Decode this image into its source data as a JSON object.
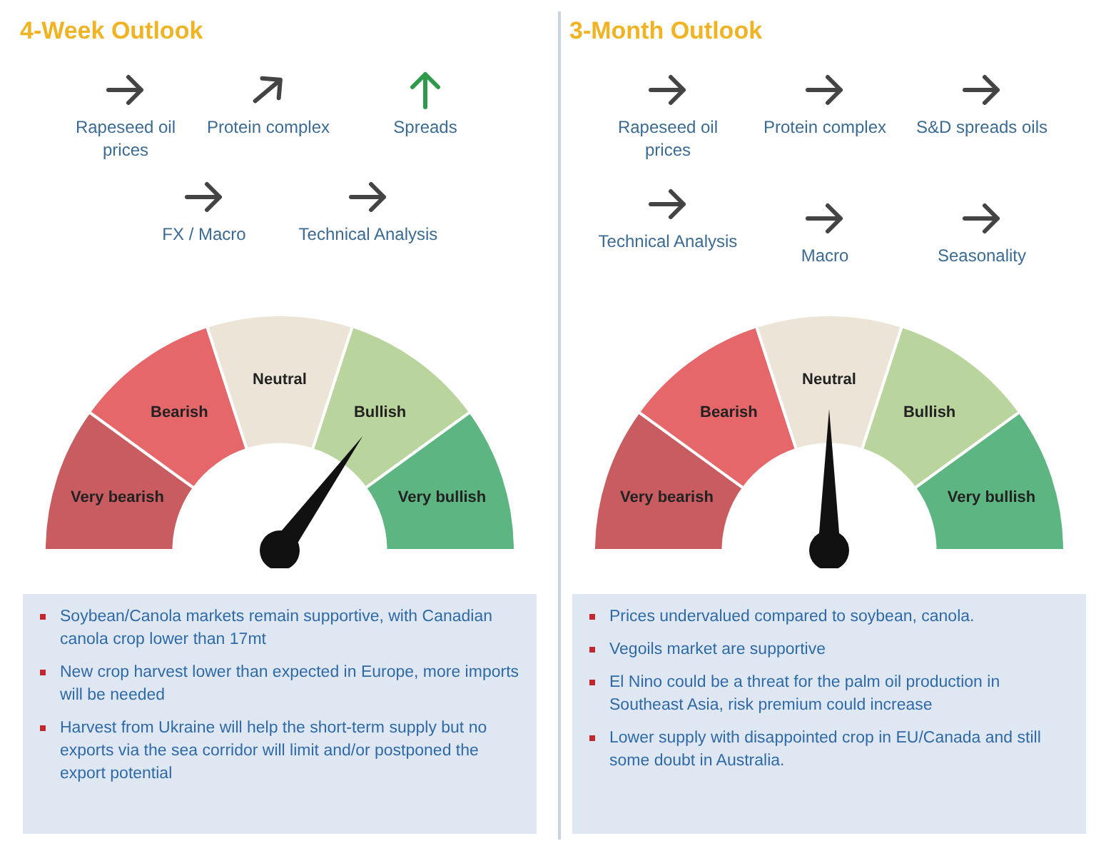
{
  "chart_data": [
    {
      "type": "donut",
      "title": "4-Week Outlook",
      "categories": [
        "Very bearish",
        "Bearish",
        "Neutral",
        "Bullish",
        "Very bullish"
      ],
      "values": [
        20,
        20,
        20,
        20,
        20
      ],
      "colors": [
        "#c95c60",
        "#e5676a",
        "#ece4d6",
        "#b9d49c",
        "#5db581"
      ],
      "needle": "Bullish",
      "annotations": [
        "Rapeseed oil prices",
        "Protein complex",
        "Spreads",
        "FX / Macro",
        "Technical Analysis",
        "Soybean/Canola markets remain supportive, with Canadian canola crop lower than 17mt",
        "New crop harvest lower than expected in Europe, more imports will be needed",
        "Harvest from Ukraine will help the short-term supply but no exports via the sea corridor will limit and/or postponed the export potential"
      ]
    },
    {
      "type": "donut",
      "title": "3-Month Outlook",
      "categories": [
        "Very bearish",
        "Bearish",
        "Neutral",
        "Bullish",
        "Very bullish"
      ],
      "values": [
        20,
        20,
        20,
        20,
        20
      ],
      "colors": [
        "#c95c60",
        "#e5676a",
        "#ece4d6",
        "#b9d49c",
        "#5db581"
      ],
      "needle": "Neutral",
      "annotations": [
        "Rapeseed oil prices",
        "Protein complex",
        "S&D spreads oils",
        "Technical Analysis",
        "Macro",
        "Seasonality",
        "Prices undervalued compared to soybean, canola.",
        "Vegoils market are supportive",
        "El Nino could be a threat for the palm oil production in Southeast Asia, risk premium could increase",
        "Lower supply with disappointed crop in EU/Canada and still some doubt in Australia."
      ]
    }
  ]
}
